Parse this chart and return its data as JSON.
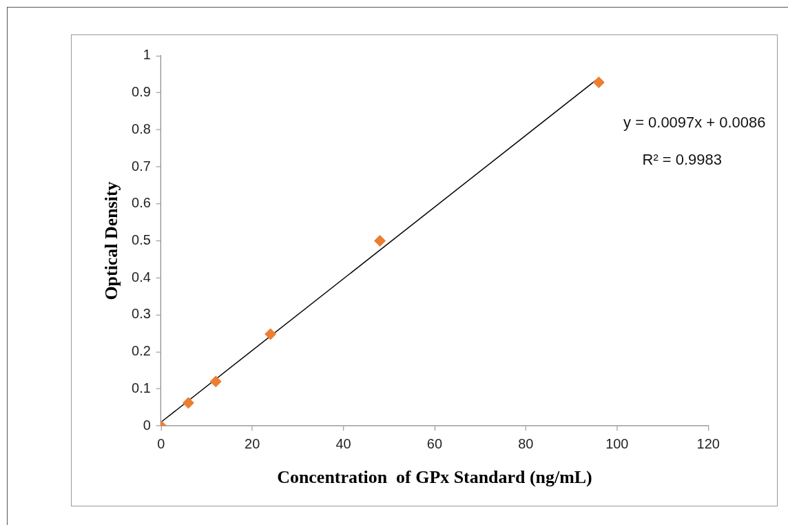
{
  "chart_data": {
    "type": "scatter",
    "xlabel": "Concentration  of GPx Standard (ng/mL)",
    "ylabel": "Optical Density",
    "x": [
      0,
      6,
      12,
      24,
      48,
      96
    ],
    "series": [
      {
        "type": "scatter",
        "color": "#ed7d31",
        "marker": "diamond",
        "values": [
          0,
          0.062,
          0.12,
          0.248,
          0.5,
          0.928
        ]
      },
      {
        "type": "line",
        "color": "#000000",
        "marker": "none",
        "x": [
          0,
          96
        ],
        "values": [
          0.01,
          0.94
        ]
      }
    ],
    "xlim": [
      0,
      120
    ],
    "xticks": [
      0,
      20,
      40,
      60,
      80,
      100,
      120
    ],
    "ylim": [
      0,
      1
    ],
    "yticks": [
      0,
      0.1,
      0.2,
      0.3,
      0.4,
      0.5,
      0.6,
      0.7,
      0.8,
      0.9,
      1
    ],
    "annotations": [
      "y = 0.0097x + 0.0086",
      "R² = 0.9983"
    ],
    "grid": false,
    "legend": false,
    "line_style": "solid"
  }
}
